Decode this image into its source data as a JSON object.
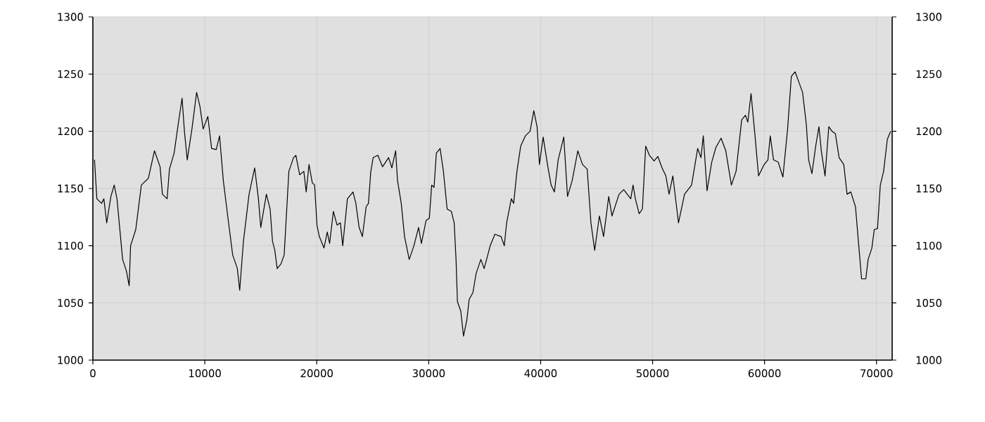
{
  "chart_data": {
    "type": "line",
    "xlim": [
      0,
      71400
    ],
    "ylim": [
      1000,
      1300
    ],
    "xticks": [
      0,
      10000,
      20000,
      30000,
      40000,
      50000,
      60000,
      70000
    ],
    "yticks": [
      1000,
      1050,
      1100,
      1150,
      1200,
      1250,
      1300
    ],
    "y2lim": [
      1000,
      1300
    ],
    "y2ticks": [
      1000,
      1050,
      1100,
      1150,
      1200,
      1250,
      1300
    ],
    "grid": true,
    "legend": false,
    "marker": "none",
    "line_style": "solid",
    "series": [
      {
        "color": "#000000",
        "x": [
          147,
          356,
          774,
          983,
          1234,
          1611,
          1904,
          2155,
          2657,
          2992,
          3243,
          3369,
          3829,
          4331,
          4958,
          5502,
          6004,
          6213,
          6632,
          6841,
          7259,
          7678,
          7970,
          8179,
          8430,
          8849,
          9267,
          9560,
          9853,
          10271,
          10606,
          11024,
          11317,
          11652,
          12070,
          12488,
          12907,
          13116,
          13451,
          13953,
          14455,
          14789,
          14998,
          15500,
          15835,
          16044,
          16253,
          16462,
          16797,
          17090,
          17508,
          17926,
          18136,
          18470,
          18847,
          19056,
          19307,
          19600,
          19809,
          20019,
          20228,
          20646,
          20939,
          21148,
          21483,
          21817,
          22110,
          22320,
          22738,
          23240,
          23491,
          23784,
          24077,
          24412,
          24619,
          24829,
          25038,
          25456,
          25875,
          26419,
          26712,
          27046,
          27214,
          27548,
          27841,
          28259,
          28678,
          29096,
          29347,
          29765,
          30058,
          30267,
          30476,
          30685,
          31020,
          31313,
          31648,
          32024,
          32275,
          32442,
          32568,
          32861,
          33112,
          33405,
          33614,
          33949,
          34242,
          34660,
          34953,
          35497,
          35915,
          36460,
          36753,
          36962,
          37380,
          37590,
          37882,
          38217,
          38635,
          39054,
          39389,
          39682,
          39891,
          40226,
          40644,
          40937,
          41230,
          41564,
          42066,
          42401,
          42819,
          43321,
          43740,
          44158,
          44493,
          44827,
          45246,
          45622,
          46082,
          46375,
          47003,
          47421,
          48049,
          48254,
          48463,
          48798,
          49091,
          49383,
          49718,
          50136,
          50471,
          50847,
          51182,
          51475,
          51810,
          52312,
          52855,
          53483,
          54027,
          54320,
          54529,
          54864,
          55282,
          55659,
          56119,
          56537,
          57039,
          57458,
          57960,
          58295,
          58504,
          58797,
          59132,
          59466,
          59968,
          60303,
          60512,
          60805,
          61223,
          61642,
          62060,
          62394,
          62729,
          63105,
          63398,
          63733,
          63942,
          64235,
          64569,
          64862,
          65071,
          65406,
          65740,
          66033,
          66326,
          66661,
          67079,
          67372,
          67707,
          68125,
          68418,
          68669,
          69046,
          69255,
          69590,
          69799,
          70092,
          70343,
          70636,
          70971,
          71264
        ],
        "values": [
          1175,
          1141,
          1137,
          1141,
          1120,
          1143,
          1153,
          1141,
          1088,
          1078,
          1065,
          1100,
          1114,
          1153,
          1159,
          1183,
          1169,
          1145,
          1141,
          1167,
          1181,
          1210,
          1229,
          1200,
          1175,
          1202,
          1234,
          1222,
          1202,
          1213,
          1185,
          1184,
          1196,
          1157,
          1124,
          1092,
          1080,
          1061,
          1104,
          1145,
          1168,
          1141,
          1116,
          1145,
          1132,
          1104,
          1096,
          1080,
          1084,
          1092,
          1165,
          1177,
          1179,
          1162,
          1165,
          1147,
          1171,
          1155,
          1153,
          1118,
          1108,
          1098,
          1112,
          1102,
          1130,
          1118,
          1120,
          1100,
          1141,
          1147,
          1137,
          1116,
          1108,
          1134,
          1137,
          1165,
          1177,
          1179,
          1169,
          1177,
          1168,
          1183,
          1157,
          1137,
          1108,
          1088,
          1100,
          1116,
          1102,
          1122,
          1124,
          1153,
          1151,
          1181,
          1185,
          1165,
          1132,
          1130,
          1120,
          1088,
          1051,
          1043,
          1021,
          1035,
          1053,
          1059,
          1076,
          1088,
          1080,
          1100,
          1110,
          1108,
          1100,
          1120,
          1141,
          1137,
          1165,
          1187,
          1196,
          1200,
          1218,
          1204,
          1171,
          1195,
          1169,
          1153,
          1147,
          1175,
          1195,
          1143,
          1157,
          1183,
          1171,
          1167,
          1120,
          1096,
          1126,
          1108,
          1143,
          1126,
          1145,
          1149,
          1141,
          1153,
          1141,
          1128,
          1132,
          1187,
          1179,
          1174,
          1178,
          1168,
          1161,
          1145,
          1161,
          1120,
          1145,
          1153,
          1185,
          1177,
          1196,
          1148,
          1173,
          1186,
          1194,
          1183,
          1153,
          1165,
          1210,
          1214,
          1208,
          1233,
          1198,
          1161,
          1171,
          1175,
          1196,
          1175,
          1173,
          1160,
          1202,
          1248,
          1252,
          1242,
          1234,
          1206,
          1175,
          1163,
          1187,
          1204,
          1183,
          1161,
          1204,
          1200,
          1198,
          1177,
          1171,
          1145,
          1147,
          1134,
          1100,
          1071,
          1071,
          1088,
          1098,
          1114,
          1115,
          1153,
          1165,
          1193,
          1200
        ]
      }
    ]
  }
}
